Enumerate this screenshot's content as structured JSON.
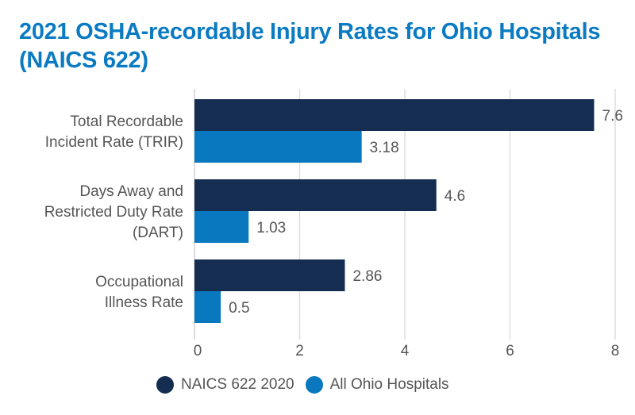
{
  "chart_data": {
    "type": "bar",
    "orientation": "horizontal",
    "title": "2021 OSHA-recordable Injury Rates for Ohio Hospitals (NAICS 622)",
    "categories": [
      [
        "Total Recordable",
        "Incident Rate (TRIR)"
      ],
      [
        "Days Away and",
        "Restricted Duty Rate",
        "(DART)"
      ],
      [
        "Occupational",
        "Illness Rate"
      ]
    ],
    "series": [
      {
        "name": "NAICS 622 2020",
        "color": "#142d50",
        "values": [
          7.6,
          4.6,
          2.86
        ],
        "labels": [
          "7.6",
          "4.6",
          "2.86"
        ]
      },
      {
        "name": "All Ohio Hospitals",
        "color": "#0a78bf",
        "values": [
          3.18,
          1.03,
          0.5
        ],
        "labels": [
          "3.18",
          "1.03",
          "0.5"
        ]
      }
    ],
    "xlim": [
      0,
      8
    ],
    "xticks": [
      "0",
      "2",
      "4",
      "6",
      "8"
    ],
    "xlabel": "",
    "ylabel": "",
    "grid": true,
    "legend_position": "bottom"
  }
}
